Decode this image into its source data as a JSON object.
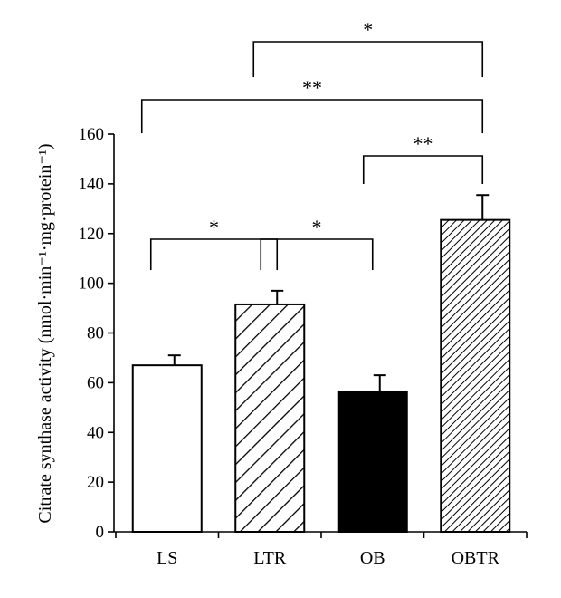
{
  "chart_data": {
    "type": "bar",
    "title": "",
    "xlabel": "",
    "ylabel": "Citrate synthase activity (nmol·min⁻¹·mg·protein⁻¹)",
    "ylim": [
      0,
      160
    ],
    "yticks": [
      0,
      20,
      40,
      60,
      80,
      100,
      120,
      140,
      160
    ],
    "categories": [
      "LS",
      "LTR",
      "OB",
      "OBTR"
    ],
    "values": [
      67,
      91.5,
      56.5,
      125.5
    ],
    "errors": [
      4,
      5.5,
      6.5,
      10
    ],
    "fills": [
      "white",
      "hatch-wide",
      "black",
      "hatch-dense"
    ],
    "colors": {
      "bar_stroke": "#000000",
      "solid": "#000000",
      "open": "#ffffff"
    },
    "significance": [
      {
        "from": "LS",
        "to": "LTR",
        "label": "*"
      },
      {
        "from": "LTR",
        "to": "OB",
        "label": "*"
      },
      {
        "from": "OB",
        "to": "OBTR",
        "label": "**"
      },
      {
        "from": "LS",
        "to": "OBTR",
        "label": "**"
      },
      {
        "from": "LTR",
        "to": "OBTR",
        "label": "*"
      }
    ]
  }
}
